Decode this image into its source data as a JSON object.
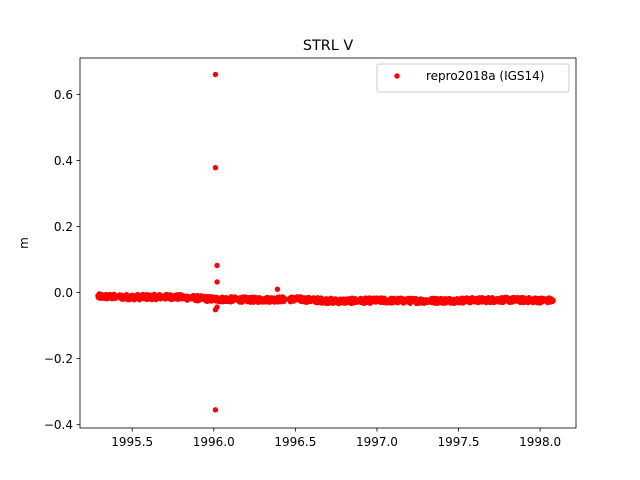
{
  "chart_data": {
    "type": "scatter",
    "title": "STRL V",
    "xlabel": "",
    "ylabel": "m",
    "xlim": [
      1995.18,
      1998.22
    ],
    "ylim": [
      -0.41,
      0.71
    ],
    "xticks": [
      1995.5,
      1996.0,
      1996.5,
      1997.0,
      1997.5,
      1998.0
    ],
    "xtick_labels": [
      "1995.5",
      "1996.0",
      "1996.5",
      "1997.0",
      "1997.5",
      "1998.0"
    ],
    "yticks": [
      -0.4,
      -0.2,
      0.0,
      0.2,
      0.4,
      0.6
    ],
    "ytick_labels": [
      "−0.4",
      "−0.2",
      "0.0",
      "0.2",
      "0.4",
      "0.6"
    ],
    "grid": false,
    "legend_position": "top-right",
    "series": [
      {
        "name": "repro2018a (IGS14)",
        "color": "#ff0000",
        "marker": "circle",
        "x_start": 1995.29,
        "x_end": 1998.08,
        "baseline": [
          [
            1995.29,
            -0.012
          ],
          [
            1995.5,
            -0.014
          ],
          [
            1995.75,
            -0.013
          ],
          [
            1996.0,
            -0.02
          ],
          [
            1996.25,
            -0.022
          ],
          [
            1996.5,
            -0.02
          ],
          [
            1996.75,
            -0.026
          ],
          [
            1997.0,
            -0.024
          ],
          [
            1997.25,
            -0.025
          ],
          [
            1997.5,
            -0.024
          ],
          [
            1997.75,
            -0.022
          ],
          [
            1998.08,
            -0.024
          ]
        ],
        "outliers": [
          [
            1996.01,
            0.66
          ],
          [
            1996.01,
            0.378
          ],
          [
            1996.02,
            0.082
          ],
          [
            1996.02,
            0.032
          ],
          [
            1996.39,
            0.01
          ],
          [
            1996.01,
            -0.052
          ],
          [
            1996.02,
            -0.044
          ],
          [
            1996.01,
            -0.355
          ]
        ]
      }
    ]
  }
}
